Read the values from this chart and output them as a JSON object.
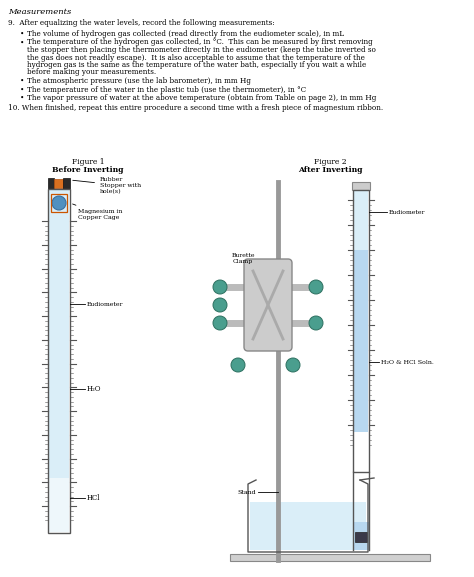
{
  "title": "Measurements",
  "section9_header": "9.  After equalizing the water levels, record the following measurements:",
  "bullet1": "The volume of hydrogen gas collected (read directly from the eudiometer scale), in mL",
  "bullet2_l1": "The temperature of the hydrogen gas collected, in °C.  This can be measured by first removing",
  "bullet2_l2": "the stopper then placing the thermometer directly in the eudiometer (keep the tube inverted so",
  "bullet2_l3": "the gas does not readily escape).  It is also acceptable to assume that the temperature of the",
  "bullet2_l4": "hydrogen gas is the same as the temperature of the water bath, especially if you wait a while",
  "bullet2_l5": "before making your measurements.",
  "bullet3": "The atmospheric pressure (use the lab barometer), in mm Hg",
  "bullet4": "The temperature of the water in the plastic tub (use the thermometer), in °C",
  "bullet5": "The vapor pressure of water at the above temperature (obtain from Table on page 2), in mm Hg",
  "section10": "10. When finished, repeat this entire procedure a second time with a fresh piece of magnesium ribbon.",
  "fig1_title": "Figure 1",
  "fig1_subtitle": "Before Inverting",
  "fig2_title": "Figure 2",
  "fig2_subtitle": "After Inverting",
  "label_rubber": "Rubber\nStopper with\nhole(s)",
  "label_magnesium": "Magnesium in\nCopper Cage",
  "label_eudiometer_fig1": "Eudiometer",
  "label_h2o": "H₂O",
  "label_hcl": "HCl",
  "label_burette_clamp": "Burette\nClamp",
  "label_eudiometer_fig2": "Eudiometer",
  "label_h2o_hcl": "H₂O & HCl Soln.",
  "label_stand": "Stand",
  "bg_color": "#ffffff",
  "text_color": "#000000",
  "tube_color_light": "#daeef8",
  "tube_color_hcl": "#eef7fb",
  "tube_color_dark": "#b8d8f0",
  "clamp_color": "#c8c8c8",
  "teal_color": "#4a9e8e"
}
